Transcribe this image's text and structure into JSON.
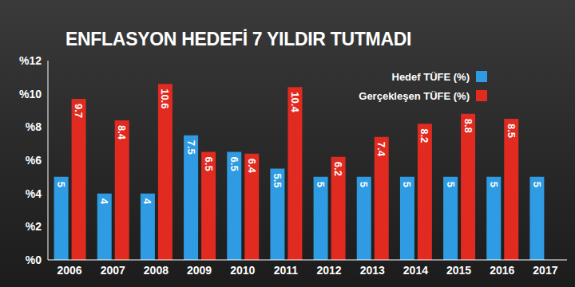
{
  "chart_data": {
    "type": "bar",
    "title": "ENFLASYON HEDEFİ 7 YILDIR TUTMADI",
    "categories": [
      "2006",
      "2007",
      "2008",
      "2009",
      "2010",
      "2011",
      "2012",
      "2013",
      "2014",
      "2015",
      "2016",
      "2017"
    ],
    "series": [
      {
        "name": "Hedef TÜFE (%)",
        "color": "#2f9be3",
        "values": [
          5,
          4,
          4,
          7.5,
          6.5,
          5.5,
          5,
          5,
          5,
          5,
          5,
          5
        ]
      },
      {
        "name": "Gerçekleşen TÜFE (%)",
        "color": "#e12a20",
        "values": [
          9.7,
          8.4,
          10.6,
          6.5,
          6.4,
          10.4,
          6.2,
          7.4,
          8.2,
          8.8,
          8.5,
          null
        ]
      }
    ],
    "ylim": [
      0,
      12
    ],
    "yticks": [
      {
        "value": 0,
        "label": "%0"
      },
      {
        "value": 2,
        "label": "%2"
      },
      {
        "value": 4,
        "label": "%4"
      },
      {
        "value": 6,
        "label": "%6"
      },
      {
        "value": 8,
        "label": "%8"
      },
      {
        "value": 10,
        "label": "%10"
      },
      {
        "value": 12,
        "label": "%12"
      }
    ],
    "grid": false,
    "data_labels": true,
    "legend": "top-right"
  }
}
